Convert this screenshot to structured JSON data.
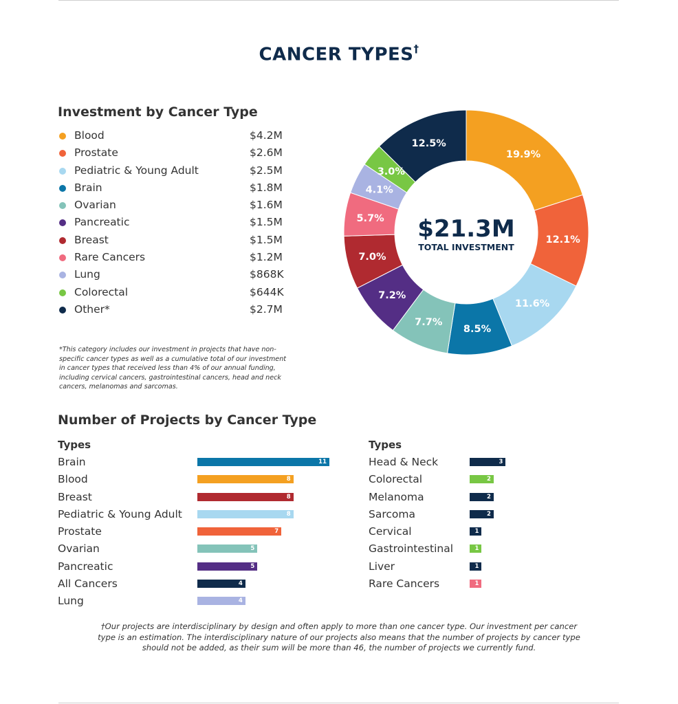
{
  "title": "CANCER TYPES",
  "title_mark": "†",
  "chart_data": [
    {
      "type": "pie",
      "title": "Investment by Cancer Type",
      "donut": true,
      "center_value": "$21.3M",
      "center_label": "TOTAL INVESTMENT",
      "legend_position": "left",
      "slices": [
        {
          "label": "Blood",
          "amount": "$4.2M",
          "percent": 19.9,
          "percent_label": "19.9%",
          "color": "#f4a021"
        },
        {
          "label": "Prostate",
          "amount": "$2.6M",
          "percent": 12.1,
          "percent_label": "12.1%",
          "color": "#f0633a"
        },
        {
          "label": "Pediatric & Young Adult",
          "amount": "$2.5M",
          "percent": 11.6,
          "percent_label": "11.6%",
          "color": "#a8d8f0"
        },
        {
          "label": "Brain",
          "amount": "$1.8M",
          "percent": 8.5,
          "percent_label": "8.5%",
          "color": "#0b76a8"
        },
        {
          "label": "Ovarian",
          "amount": "$1.6M",
          "percent": 7.7,
          "percent_label": "7.7%",
          "color": "#84c3b9"
        },
        {
          "label": "Pancreatic",
          "amount": "$1.5M",
          "percent": 7.2,
          "percent_label": "7.2%",
          "color": "#542e85"
        },
        {
          "label": "Breast",
          "amount": "$1.5M",
          "percent": 7.0,
          "percent_label": "7.0%",
          "color": "#b02a30"
        },
        {
          "label": "Rare Cancers",
          "amount": "$1.2M",
          "percent": 5.7,
          "percent_label": "5.7%",
          "color": "#f06b7f"
        },
        {
          "label": "Lung",
          "amount": "$868K",
          "percent": 4.1,
          "percent_label": "4.1%",
          "color": "#a9b3e2"
        },
        {
          "label": "Colorectal",
          "amount": "$644K",
          "percent": 3.0,
          "percent_label": "3.0%",
          "color": "#78c744"
        },
        {
          "label": "Other*",
          "amount": "$2.7M",
          "percent": 12.5,
          "percent_label": "12.5%",
          "color": "#0f2b4b"
        }
      ]
    },
    {
      "type": "bar",
      "title": "Number of Projects by Cancer Type",
      "orientation": "horizontal",
      "groups": [
        {
          "header": "Types",
          "scale_max": 11,
          "bars": [
            {
              "label": "Brain",
              "value": 11,
              "color": "#0b76a8"
            },
            {
              "label": "Blood",
              "value": 8,
              "color": "#f4a021"
            },
            {
              "label": "Breast",
              "value": 8,
              "color": "#b02a30"
            },
            {
              "label": "Pediatric & Young Adult",
              "value": 8,
              "color": "#a8d8f0"
            },
            {
              "label": "Prostate",
              "value": 7,
              "color": "#f0633a"
            },
            {
              "label": "Ovarian",
              "value": 5,
              "color": "#84c3b9"
            },
            {
              "label": "Pancreatic",
              "value": 5,
              "color": "#542e85"
            },
            {
              "label": "All Cancers",
              "value": 4,
              "color": "#0f2b4b"
            },
            {
              "label": "Lung",
              "value": 4,
              "color": "#a9b3e2"
            }
          ]
        },
        {
          "header": "Types",
          "scale_max": 11,
          "bars": [
            {
              "label": "Head & Neck",
              "value": 3,
              "color": "#0f2b4b"
            },
            {
              "label": "Colorectal",
              "value": 2,
              "color": "#78c744"
            },
            {
              "label": "Melanoma",
              "value": 2,
              "color": "#0f2b4b"
            },
            {
              "label": "Sarcoma",
              "value": 2,
              "color": "#0f2b4b"
            },
            {
              "label": "Cervical",
              "value": 1,
              "color": "#0f2b4b"
            },
            {
              "label": "Gastrointestinal",
              "value": 1,
              "color": "#78c744"
            },
            {
              "label": "Liver",
              "value": 1,
              "color": "#0f2b4b"
            },
            {
              "label": "Rare Cancers",
              "value": 1,
              "color": "#f06b7f"
            }
          ]
        }
      ]
    }
  ],
  "footnote_other": "*This category includes our investment in projects that have non-specific cancer types as well as a cumulative total of our investment in cancer types that received less than 4% of our annual funding, including cervical cancers, gastrointestinal cancers, head and neck cancers, melanomas and sarcomas.",
  "footnote_dagger": "†Our projects are interdisciplinary by design and often apply to more than one cancer type. Our investment per cancer type is an estimation. The interdisciplinary nature of our projects also means that the number of projects by cancer type should not be added, as their sum will be more than 46, the number of projects we currently fund.",
  "colors": {
    "title": "#0f2b4b",
    "text": "#333333"
  }
}
